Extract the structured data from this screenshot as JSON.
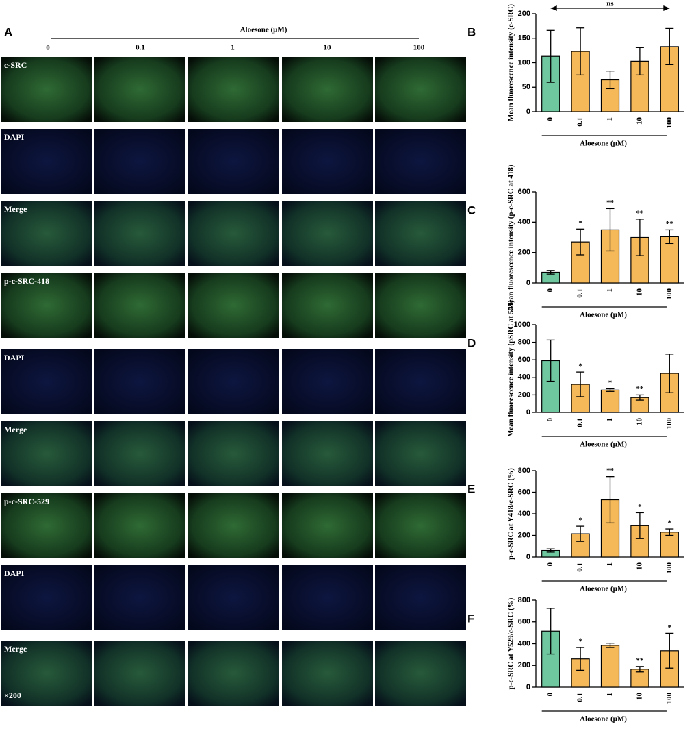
{
  "panel_a": {
    "label": "A",
    "axis_label": "Aloesone (μM)",
    "columns": [
      "0",
      "0.1",
      "1",
      "10",
      "100"
    ],
    "rows": [
      "c-SRC",
      "DAPI",
      "Merge",
      "p-c-SRC-418",
      "DAPI",
      "Merge",
      "p-c-SRC-529",
      "DAPI",
      "Merge"
    ],
    "magnification": "×200"
  },
  "chart_data": [
    {
      "type": "bar",
      "label": "B",
      "ylabel": "Mean fluorescence intensity (c-SRC)",
      "xlabel": "Aloesone (μM)",
      "categories": [
        "0",
        "0.1",
        "1",
        "10",
        "100"
      ],
      "values": [
        113,
        123,
        65,
        103,
        133
      ],
      "errors": [
        53,
        48,
        18,
        28,
        37
      ],
      "colors": [
        "#6fc7a0",
        "#f5b95a",
        "#f5b95a",
        "#f5b95a",
        "#f5b95a"
      ],
      "significance": [
        null,
        null,
        null,
        null,
        null
      ],
      "annotation": "ns",
      "ylim": [
        0,
        200
      ],
      "yticks": [
        0,
        50,
        100,
        150,
        200
      ]
    },
    {
      "type": "bar",
      "label": "C",
      "ylabel": "Mean fluorescence intensity (p-c-SRC at 418)",
      "xlabel": "Aloesone (μM)",
      "categories": [
        "0",
        "0.1",
        "1",
        "10",
        "100"
      ],
      "values": [
        70,
        270,
        350,
        300,
        305
      ],
      "errors": [
        12,
        85,
        140,
        120,
        45
      ],
      "colors": [
        "#6fc7a0",
        "#f5b95a",
        "#f5b95a",
        "#f5b95a",
        "#f5b95a"
      ],
      "significance": [
        null,
        "*",
        "**",
        "**",
        "**"
      ],
      "ylim": [
        0,
        600
      ],
      "yticks": [
        0,
        200,
        400,
        600
      ]
    },
    {
      "type": "bar",
      "label": "D",
      "ylabel": "Mean fluorescence intensity (pSRC at 529)",
      "xlabel": "Aloesone (μM)",
      "categories": [
        "0",
        "0.1",
        "1",
        "10",
        "100"
      ],
      "values": [
        590,
        320,
        255,
        170,
        445
      ],
      "errors": [
        235,
        140,
        15,
        30,
        220
      ],
      "colors": [
        "#6fc7a0",
        "#f5b95a",
        "#f5b95a",
        "#f5b95a",
        "#f5b95a"
      ],
      "significance": [
        null,
        "*",
        "*",
        "**",
        null
      ],
      "ylim": [
        0,
        1000
      ],
      "yticks": [
        0,
        200,
        400,
        600,
        800,
        1000
      ]
    },
    {
      "type": "bar",
      "label": "E",
      "ylabel": "p-c-SRC at Y418/c-SRC (%)",
      "xlabel": "Aloesone (μM)",
      "categories": [
        "0",
        "0.1",
        "1",
        "10",
        "100"
      ],
      "values": [
        60,
        215,
        530,
        290,
        230
      ],
      "errors": [
        15,
        70,
        215,
        120,
        30
      ],
      "colors": [
        "#6fc7a0",
        "#f5b95a",
        "#f5b95a",
        "#f5b95a",
        "#f5b95a"
      ],
      "significance": [
        null,
        "*",
        "**",
        "*",
        "*"
      ],
      "ylim": [
        0,
        800
      ],
      "yticks": [
        0,
        200,
        400,
        600,
        800
      ]
    },
    {
      "type": "bar",
      "label": "F",
      "ylabel": "p-c-SRC at Y529/c-SRC (%)",
      "xlabel": "Aloesone (μM)",
      "categories": [
        "0",
        "0.1",
        "1",
        "10",
        "100"
      ],
      "values": [
        515,
        260,
        385,
        165,
        335
      ],
      "errors": [
        210,
        105,
        20,
        25,
        160
      ],
      "colors": [
        "#6fc7a0",
        "#f5b95a",
        "#f5b95a",
        "#f5b95a",
        "#f5b95a"
      ],
      "significance": [
        null,
        "*",
        null,
        "**",
        "*"
      ],
      "ylim": [
        0,
        800
      ],
      "yticks": [
        0,
        200,
        400,
        600,
        800
      ]
    }
  ]
}
